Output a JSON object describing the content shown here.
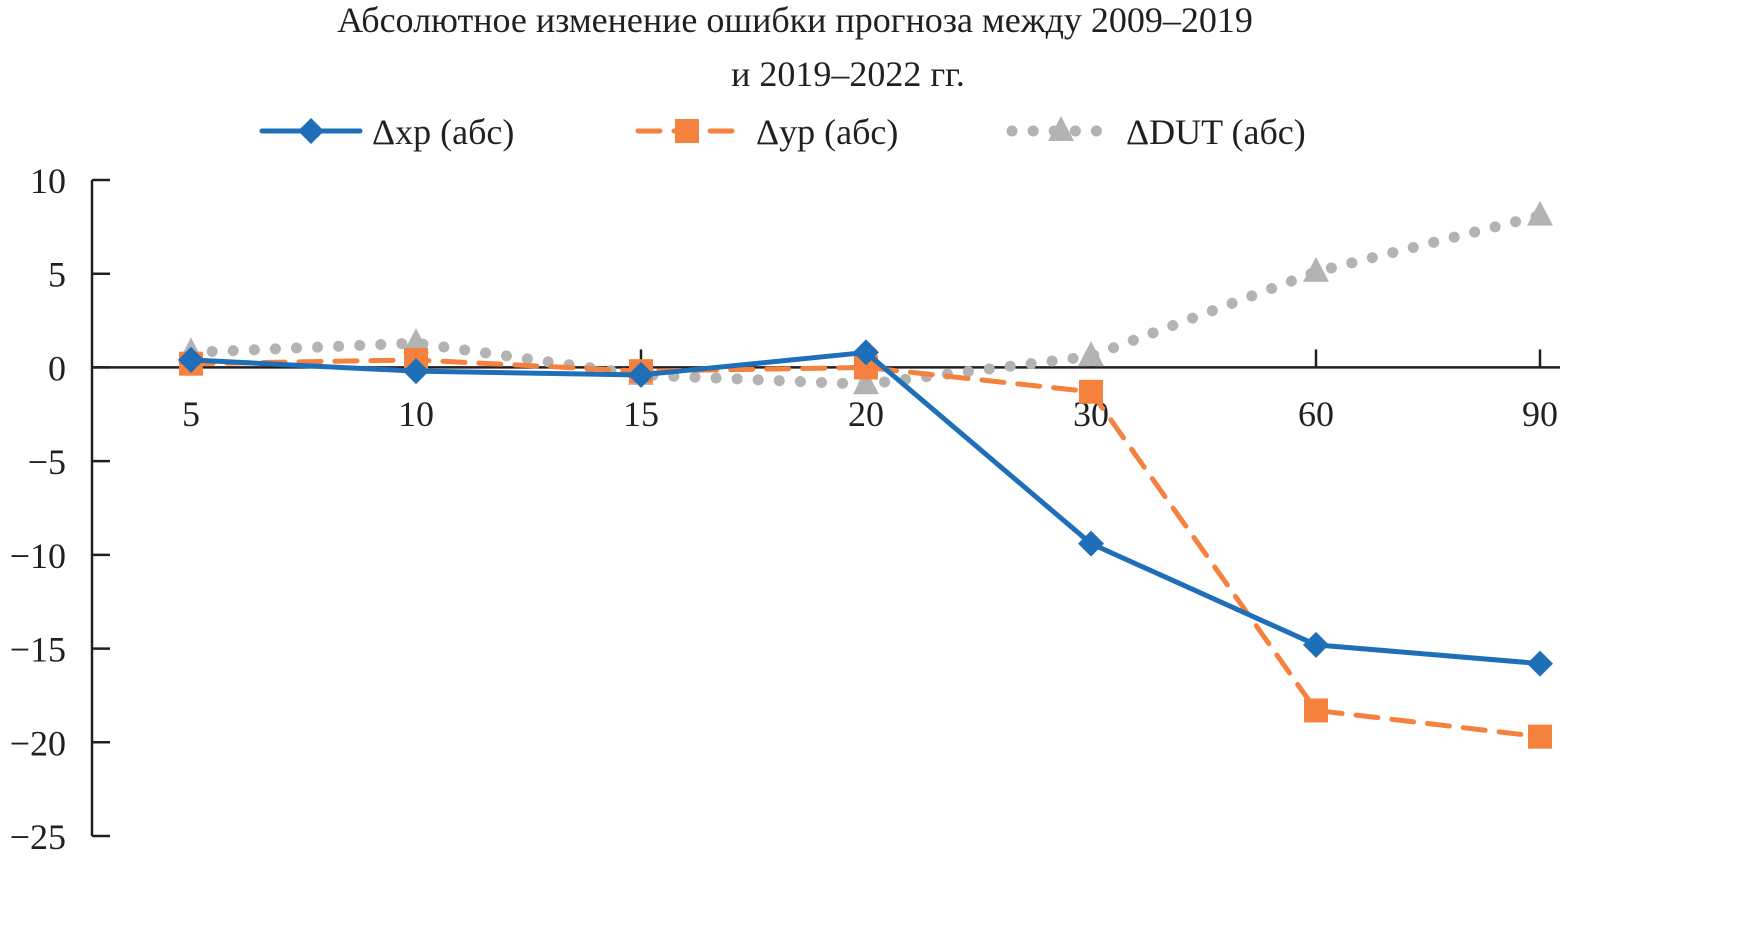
{
  "chart_data": {
    "type": "line",
    "title": "Абсолютное  изменение ошибки прогноза между 2009–2019",
    "subtitle": "и 2019–2022 гг.",
    "xlabel": "",
    "ylabel": "",
    "categories": [
      "5",
      "10",
      "15",
      "20",
      "30",
      "60",
      "90"
    ],
    "ylim": [
      -25,
      10
    ],
    "yticks": [
      10,
      5,
      0,
      -5,
      -10,
      -15,
      -20,
      -25
    ],
    "ytick_labels": [
      "10",
      "5",
      "0",
      "−5",
      "−10",
      "−15",
      "−20",
      "−25"
    ],
    "legend_position": "top",
    "grid": false,
    "series": [
      {
        "name": "Δxp (абс)",
        "color": "#1f6fb8",
        "style": "solid",
        "marker": "diamond",
        "values": [
          0.4,
          -0.2,
          -0.4,
          0.8,
          -9.4,
          -14.8,
          -15.8
        ]
      },
      {
        "name": "Δyp (абс)",
        "color": "#f5813e",
        "style": "dashed",
        "marker": "square",
        "values": [
          0.2,
          0.4,
          -0.2,
          0.0,
          -1.3,
          -18.3,
          -19.7
        ]
      },
      {
        "name": "ΔDUT (абс)",
        "color": "#b3b3b3",
        "style": "dotted",
        "marker": "triangle",
        "values": [
          0.8,
          1.3,
          -0.4,
          -0.9,
          0.6,
          5.1,
          8.1
        ]
      }
    ]
  }
}
